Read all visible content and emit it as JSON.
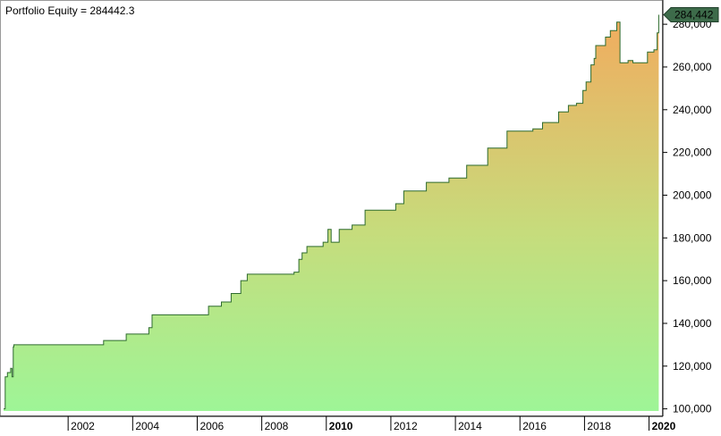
{
  "title": "Portfolio Equity = 284442.3",
  "colors": {
    "line": "#2e6b2e",
    "fill_top": "#f2ab5e",
    "fill_mid": "#c6dc7c",
    "fill_bottom": "#9ef597",
    "last_value_bg": "#3d6b4a",
    "last_value_border": "#1f3f2a",
    "axis": "#000000",
    "frame": "#9a9a9a"
  },
  "chart_data": {
    "type": "area",
    "title": "Portfolio Equity = 284442.3",
    "xlabel": "",
    "ylabel": "",
    "xlim": [
      2000.0,
      2020.4
    ],
    "ylim": [
      99000,
      288000
    ],
    "grid": false,
    "legend": "none",
    "last_value_label": "284,442",
    "y_ticks": [
      100000,
      120000,
      140000,
      160000,
      180000,
      200000,
      220000,
      240000,
      260000,
      280000
    ],
    "y_tick_labels": [
      "100,000",
      "120,000",
      "140,000",
      "160,000",
      "180,000",
      "200,000",
      "220,000",
      "240,000",
      "260,000",
      "280,000"
    ],
    "x_ticks": [
      2002,
      2004,
      2006,
      2008,
      2010,
      2012,
      2014,
      2016,
      2018,
      2020
    ],
    "x_tick_labels": [
      "2002",
      "2004",
      "2006",
      "2008",
      "2010",
      "2012",
      "2014",
      "2016",
      "2018",
      "2020"
    ],
    "x_tick_bold": [
      "2010",
      "2020"
    ],
    "series": [
      {
        "x": [
          2000.0,
          2000.05,
          2000.12,
          2000.22,
          2000.26,
          2000.3,
          2000.32,
          2002.4,
          2003.1,
          2003.8,
          2004.5,
          2004.6,
          2006.15,
          2006.35,
          2006.75,
          2007.05,
          2007.35,
          2007.55,
          2009.0,
          2009.15,
          2009.25,
          2009.4,
          2009.9,
          2010.05,
          2010.15,
          2010.4,
          2010.8,
          2011.2,
          2011.95,
          2012.15,
          2012.4,
          2013.1,
          2013.8,
          2014.35,
          2014.5,
          2015.0,
          2015.6,
          2016.4,
          2016.7,
          2017.2,
          2017.5,
          2017.75,
          2017.95,
          2018.05,
          2018.2,
          2018.3,
          2018.35,
          2018.65,
          2018.8,
          2019.0,
          2019.1,
          2019.35,
          2019.5,
          2019.95,
          2020.15,
          2020.25,
          2020.3
        ],
        "y": [
          100000,
          115000,
          117000,
          119000,
          115000,
          129000,
          130000,
          130000,
          132000,
          135000,
          138000,
          144000,
          144000,
          148000,
          150000,
          154000,
          160000,
          163000,
          164000,
          170000,
          173000,
          176000,
          178000,
          184000,
          178000,
          184000,
          186000,
          193000,
          193000,
          196000,
          202000,
          206000,
          208000,
          214000,
          214000,
          222000,
          230000,
          231000,
          234000,
          239000,
          242000,
          243000,
          249000,
          253000,
          261000,
          264000,
          270000,
          274000,
          277000,
          281000,
          262000,
          263000,
          262000,
          267000,
          268000,
          276000,
          284442
        ]
      }
    ]
  }
}
